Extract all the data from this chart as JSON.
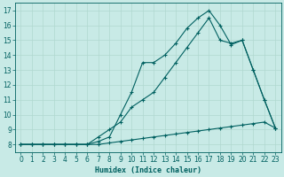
{
  "background_color": "#c8eae6",
  "grid_color": "#b0d8d0",
  "line_color": "#006060",
  "xlabel": "Humidex (Indice chaleur)",
  "xlim": [
    -0.5,
    23.5
  ],
  "ylim": [
    7.5,
    17.5
  ],
  "xticks": [
    0,
    1,
    2,
    3,
    4,
    5,
    6,
    7,
    8,
    9,
    10,
    11,
    12,
    13,
    14,
    15,
    16,
    17,
    18,
    19,
    20,
    21,
    22,
    23
  ],
  "yticks": [
    8,
    9,
    10,
    11,
    12,
    13,
    14,
    15,
    16,
    17
  ],
  "line1_x": [
    0,
    1,
    2,
    3,
    4,
    5,
    6,
    7,
    8,
    9,
    10,
    11,
    12,
    13,
    14,
    15,
    16,
    17,
    18,
    19,
    20,
    21,
    22,
    23
  ],
  "line1_y": [
    8.0,
    8.0,
    8.0,
    8.0,
    8.0,
    8.0,
    8.0,
    8.0,
    8.1,
    8.2,
    8.3,
    8.4,
    8.5,
    8.6,
    8.7,
    8.8,
    8.9,
    9.0,
    9.1,
    9.2,
    9.3,
    9.4,
    9.5,
    9.1
  ],
  "line2_x": [
    0,
    1,
    2,
    3,
    4,
    5,
    6,
    7,
    8,
    9,
    10,
    11,
    12,
    13,
    14,
    15,
    16,
    17,
    18,
    19,
    20,
    21,
    22,
    23
  ],
  "line2_y": [
    8.0,
    8.0,
    8.0,
    8.0,
    8.0,
    8.0,
    8.0,
    8.5,
    9.0,
    9.5,
    10.5,
    11.0,
    11.5,
    12.5,
    13.5,
    14.5,
    15.5,
    16.5,
    15.0,
    14.8,
    15.0,
    13.0,
    11.0,
    9.1
  ],
  "line3_x": [
    0,
    1,
    2,
    3,
    4,
    5,
    6,
    7,
    8,
    9,
    10,
    11,
    12,
    13,
    14,
    15,
    16,
    17,
    18,
    19,
    20,
    21,
    22,
    23
  ],
  "line3_y": [
    8.0,
    8.0,
    8.0,
    8.0,
    8.0,
    8.0,
    8.0,
    8.2,
    8.5,
    10.0,
    11.5,
    13.5,
    13.5,
    14.0,
    14.8,
    15.8,
    16.5,
    17.0,
    16.0,
    14.7,
    15.0,
    13.0,
    11.0,
    9.1
  ]
}
